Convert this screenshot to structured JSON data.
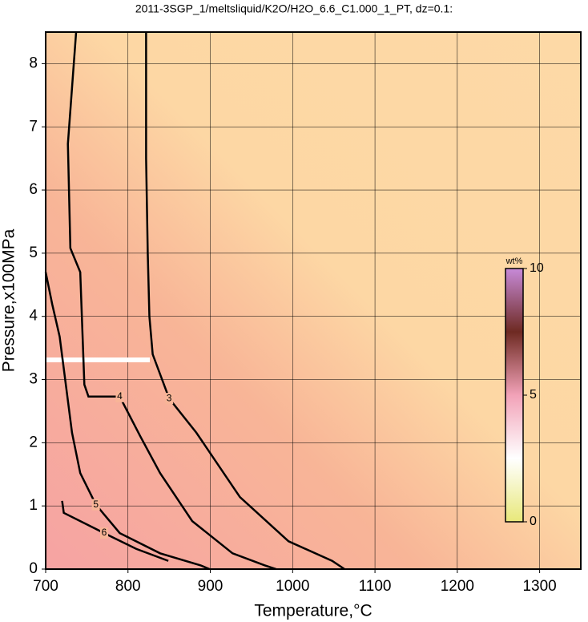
{
  "chart_data": {
    "type": "contour",
    "title": "2011-3SGP_1/meltsliquid/K2O/H2O_6.6_C1.000_1_PT, dz=0.1:",
    "xlabel": "Temperature,°C",
    "ylabel": "Pressure,x100MPa",
    "xlim": [
      700,
      1350
    ],
    "ylim": [
      0,
      8.5
    ],
    "xticks": [
      700,
      800,
      900,
      1000,
      1100,
      1200,
      1300
    ],
    "yticks": [
      0,
      1,
      2,
      3,
      4,
      5,
      6,
      7,
      8
    ],
    "grid": true,
    "contours": [
      {
        "level": 3,
        "x": [
          822,
          822,
          824,
          826,
          830,
          850,
          883,
          936,
          995,
          1048,
          1063
        ],
        "y": [
          8.5,
          6.5,
          5.0,
          4.0,
          3.4,
          2.7,
          2.16,
          1.14,
          0.44,
          0.13,
          0
        ]
      },
      {
        "level": 4,
        "x": [
          737,
          727,
          730,
          742,
          747,
          752,
          790,
          815,
          839,
          878,
          927,
          966,
          980
        ],
        "y": [
          8.5,
          6.73,
          5.08,
          4.7,
          2.92,
          2.73,
          2.73,
          2.1,
          1.52,
          0.76,
          0.25,
          0.06,
          0
        ]
      },
      {
        "level": 5,
        "x": [
          700,
          708,
          717,
          732,
          742,
          761,
          790,
          839,
          888,
          899
        ],
        "y": [
          4.7,
          4.19,
          3.68,
          2.16,
          1.52,
          1.02,
          0.57,
          0.25,
          0.06,
          0
        ]
      },
      {
        "level": 6,
        "x": [
          720,
          722,
          742,
          771,
          810,
          849
        ],
        "y": [
          1.08,
          0.89,
          0.76,
          0.57,
          0.32,
          0.13
        ]
      }
    ],
    "colorbar": {
      "title": "wt%",
      "lim": [
        0,
        10
      ],
      "ticks": [
        0,
        5,
        10
      ],
      "colors": [
        "#e8e87a",
        "#ffffff",
        "#f2a2b8",
        "#6e2a22",
        "#c78ad8"
      ]
    }
  }
}
